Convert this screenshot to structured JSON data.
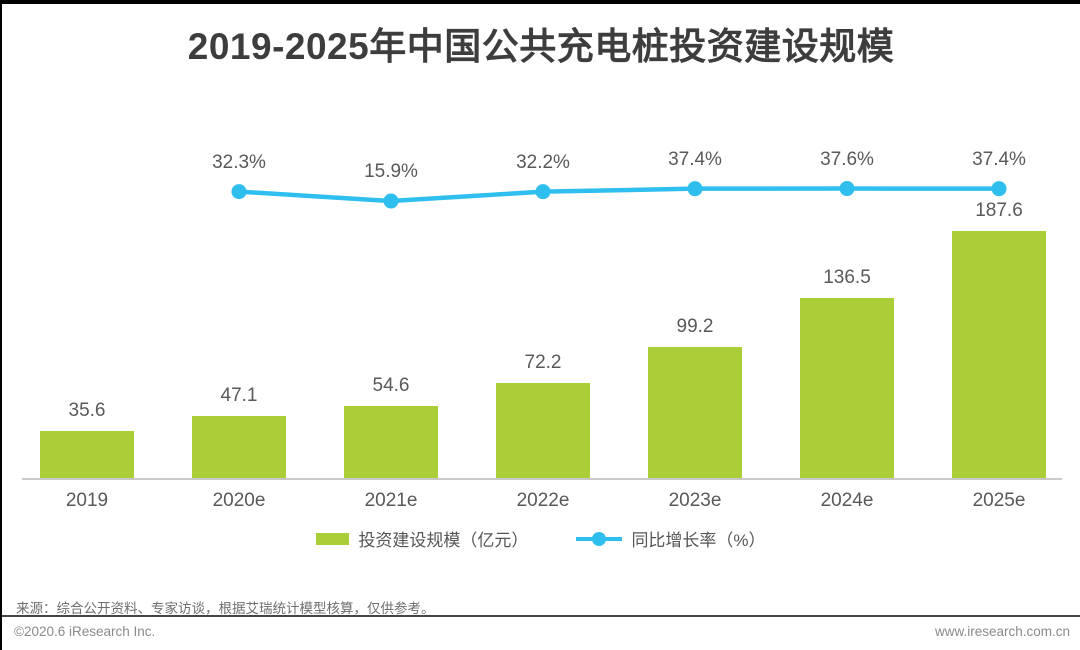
{
  "page": {
    "title": "2019-2025年中国公共充电桩投资建设规模",
    "source_note": "来源：综合公开资料、专家访谈，根据艾瑞统计模型核算，仅供参考。",
    "copyright": "©2020.6 iResearch Inc.",
    "website": "www.iresearch.com.cn"
  },
  "colors": {
    "bar": "#a9ce38",
    "line": "#2fbfee",
    "title_text": "#3d3d3d",
    "label_text": "#595959",
    "axis_line": "#c9c9c9"
  },
  "legend": {
    "bar_label": "投资建设规模（亿元）",
    "line_label": "同比增长率（%）"
  },
  "chart_data": {
    "type": "bar",
    "subtype": "bar-with-line-overlay",
    "title": "2019-2025年中国公共充电桩投资建设规模",
    "categories": [
      "2019",
      "2020e",
      "2021e",
      "2022e",
      "2023e",
      "2024e",
      "2025e"
    ],
    "series": [
      {
        "name": "投资建设规模（亿元）",
        "type": "bar",
        "unit": "亿元",
        "values": [
          35.6,
          47.1,
          54.6,
          72.2,
          99.2,
          136.5,
          187.6
        ]
      },
      {
        "name": "同比增长率（%）",
        "type": "line",
        "unit": "%",
        "values": [
          null,
          32.3,
          15.9,
          32.2,
          37.4,
          37.6,
          37.4
        ]
      }
    ],
    "xlabel": "",
    "ylabel": "",
    "value_labels_shown": true,
    "grid": false,
    "legend_position": "bottom"
  }
}
